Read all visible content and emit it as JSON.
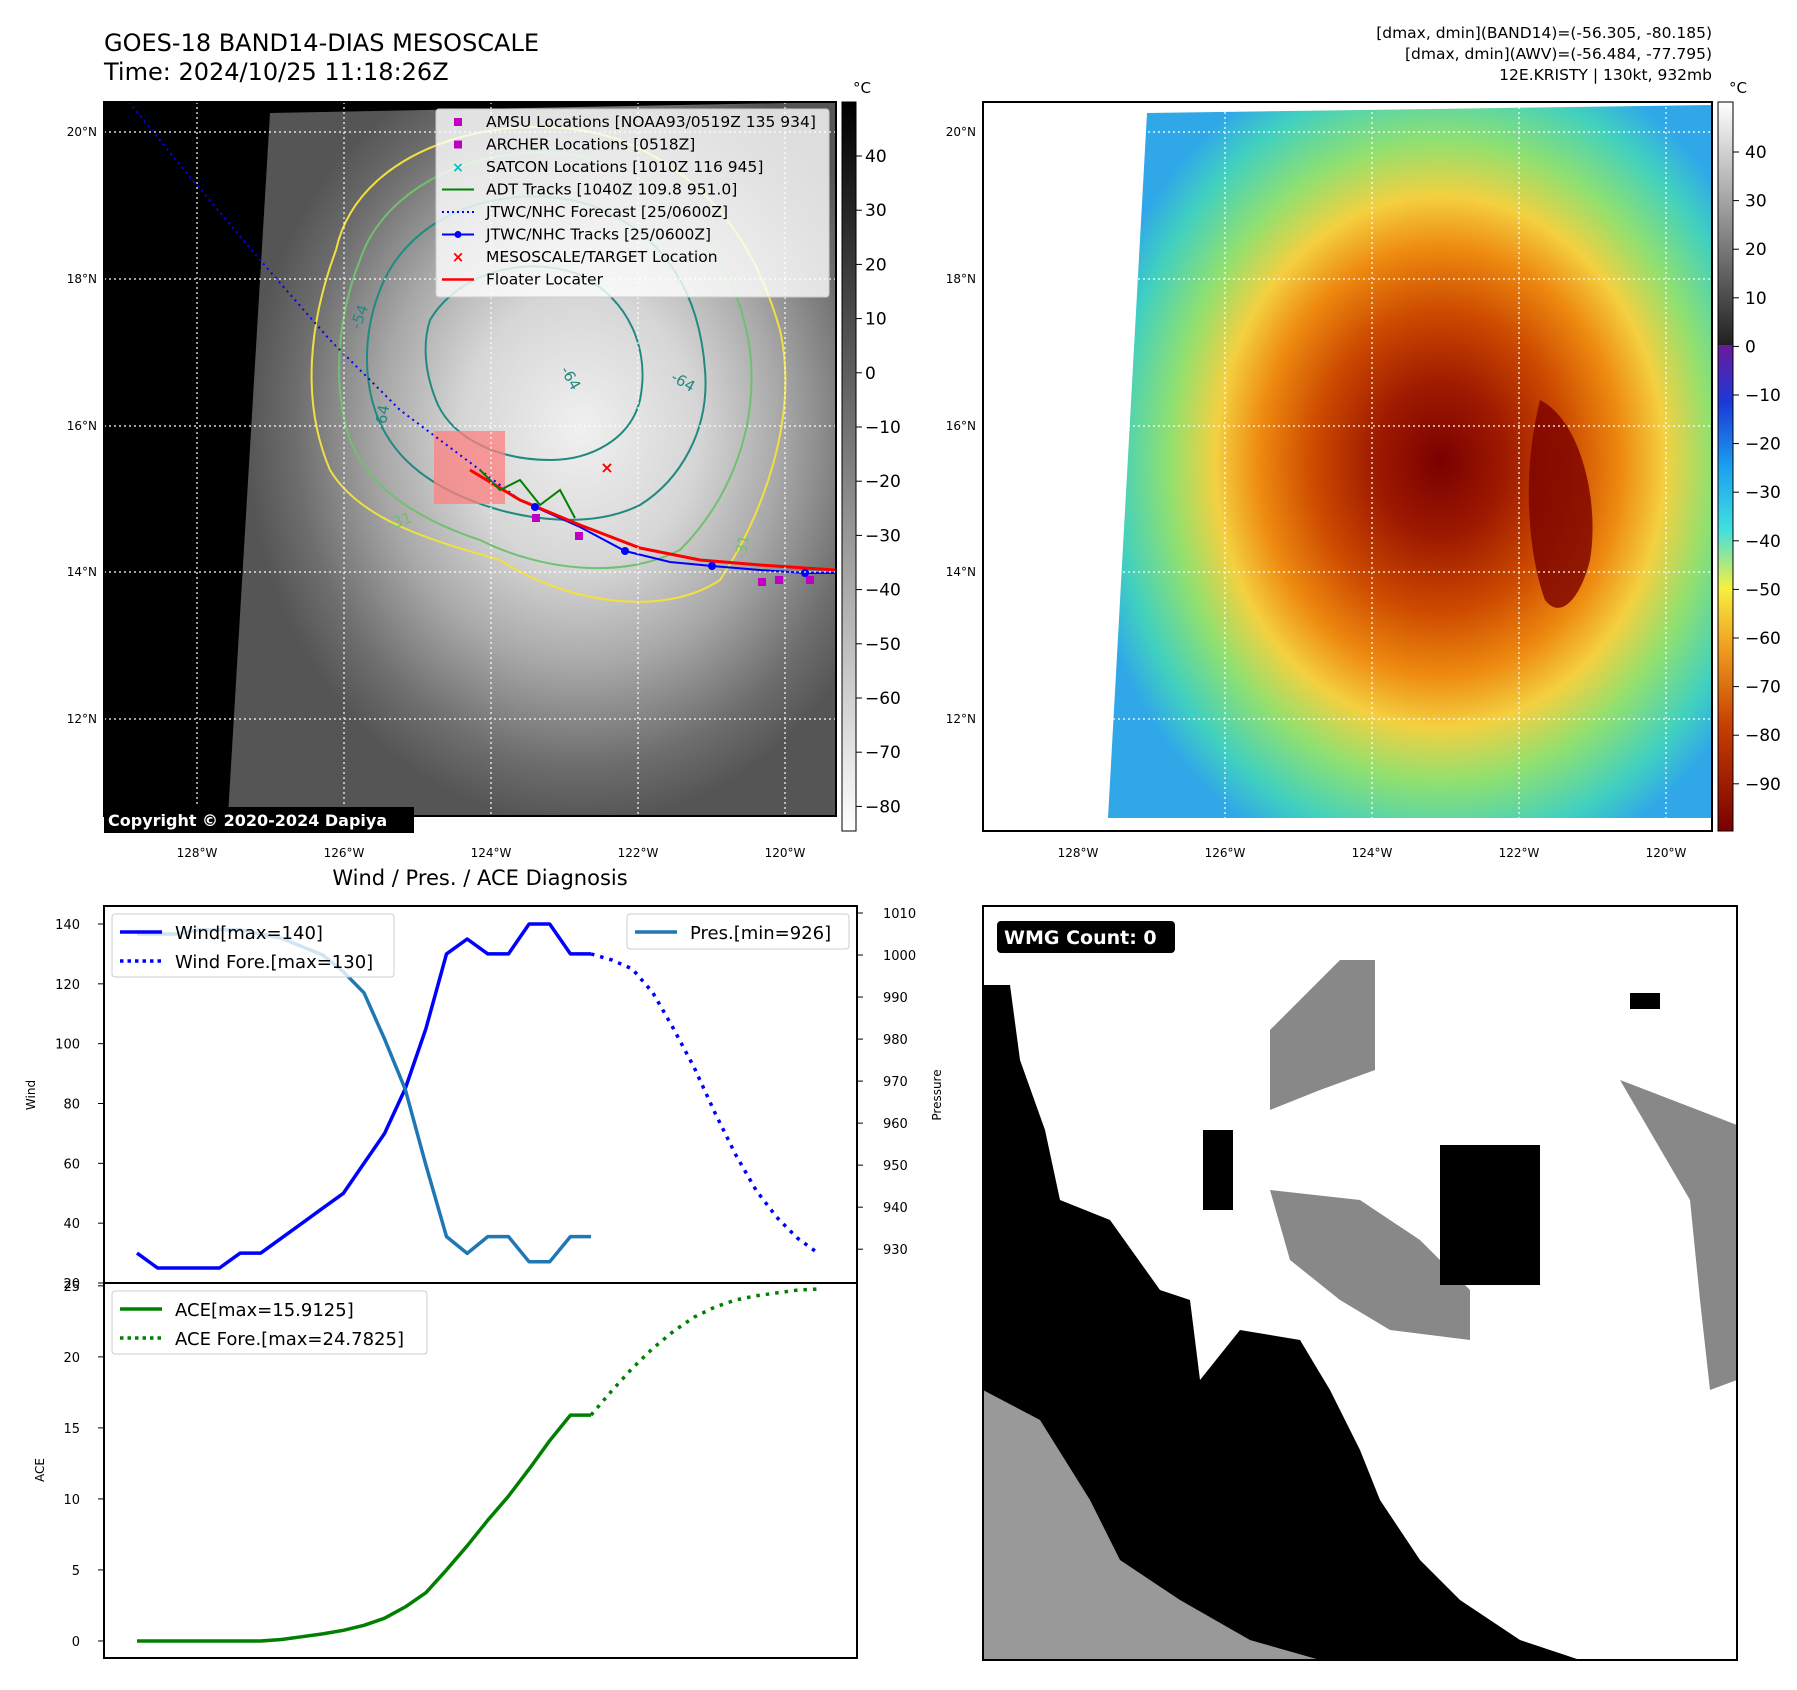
{
  "header": {
    "title_line1": "GOES-18 BAND14-DIAS MESOSCALE",
    "title_line2": "Time: 2024/10/25 11:18:26Z",
    "stats_line1": "[dmax, dmin](BAND14)=(-56.305, -80.185)",
    "stats_line2": "[dmax, dmin](AWV)=(-56.484, -77.795)",
    "stats_line3": "12E.KRISTY | 130kt, 932mb"
  },
  "maps": {
    "lon_ticks": [
      "128°W",
      "126°W",
      "124°W",
      "122°W",
      "120°W"
    ],
    "lat_ticks": [
      "20°N",
      "18°N",
      "16°N",
      "14°N",
      "12°N"
    ],
    "copyright": "Copyright © 2020-2024 Dapiya",
    "colorbar_unit": "°C",
    "gray_colorbar_ticks": [
      "40",
      "30",
      "20",
      "10",
      "0",
      "−10",
      "−20",
      "−30",
      "−40",
      "−50",
      "−60",
      "−70",
      "−80"
    ],
    "color_colorbar_ticks": [
      "40",
      "30",
      "20",
      "10",
      "0",
      "−10",
      "−20",
      "−30",
      "−40",
      "−50",
      "−60",
      "−70",
      "−80",
      "−90"
    ],
    "contour_labels": [
      "-54",
      "-64",
      "-64",
      "-64",
      "-31",
      "-31"
    ],
    "legend": [
      {
        "label": "AMSU Locations [NOAA93/0519Z 135 934]",
        "color": "#c000c0"
      },
      {
        "label": "ARCHER Locations [0518Z]",
        "color": "#c000c0"
      },
      {
        "label": "SATCON Locations [1010Z 116 945]",
        "color": "#00bfbf"
      },
      {
        "label": "ADT Tracks [1040Z 109.8 951.0]",
        "color": "#008000"
      },
      {
        "label": "JTWC/NHC Forecast [25/0600Z]",
        "color": "#0000ff"
      },
      {
        "label": "JTWC/NHC Tracks [25/0600Z]",
        "color": "#0000ff"
      },
      {
        "label": "MESOSCALE/TARGET Location",
        "color": "#ff0000"
      },
      {
        "label": "Floater Locater",
        "color": "#ff0000"
      }
    ]
  },
  "wmg": {
    "badge": "WMG Count: 0"
  },
  "chart_data": [
    {
      "type": "line",
      "title": "Wind / Pres. / ACE Diagnosis",
      "ylabel": "Wind",
      "ylabel_right": "Pressure",
      "ylim": [
        20,
        140
      ],
      "ylim_right": [
        926,
        1010
      ],
      "y_ticks": [
        20,
        40,
        60,
        80,
        100,
        120,
        140
      ],
      "y_ticks_right": [
        930,
        940,
        950,
        960,
        970,
        980,
        990,
        1000,
        1010
      ],
      "x_count": 34,
      "series": [
        {
          "name": "Wind[max=140]",
          "color": "#0000ff",
          "style": "solid",
          "axis": "left",
          "x": [
            0,
            1,
            2,
            3,
            4,
            5,
            6,
            7,
            8,
            9,
            10,
            11,
            12,
            13,
            14,
            15,
            16,
            17,
            18,
            19,
            20,
            21,
            22
          ],
          "values": [
            30,
            25,
            25,
            25,
            25,
            30,
            30,
            35,
            40,
            45,
            50,
            60,
            70,
            85,
            105,
            130,
            135,
            130,
            130,
            140,
            140,
            130,
            130
          ]
        },
        {
          "name": "Wind Fore.[max=130]",
          "color": "#0000ff",
          "style": "dotted",
          "axis": "left",
          "x": [
            22,
            23,
            24,
            25,
            26,
            27,
            28,
            29,
            30,
            31,
            32,
            33
          ],
          "values": [
            130,
            128,
            125,
            117,
            105,
            92,
            77,
            63,
            51,
            42,
            35,
            30
          ]
        },
        {
          "name": "Pres.[min=926]",
          "color": "#1f77b4",
          "style": "solid",
          "axis": "right",
          "x": [
            0,
            1,
            2,
            3,
            4,
            5,
            6,
            7,
            8,
            9,
            10,
            11,
            12,
            13,
            14,
            15,
            16,
            17,
            18,
            19,
            20,
            21,
            22
          ],
          "values": [
            1005,
            1005,
            1005,
            1006,
            1006,
            1006,
            1005,
            1004,
            1002,
            1000,
            996,
            991,
            980,
            968,
            950,
            933,
            929,
            933,
            933,
            927,
            927,
            933,
            933
          ]
        }
      ]
    },
    {
      "type": "line",
      "ylabel": "ACE",
      "ylim": [
        -1.2,
        25.2
      ],
      "y_ticks": [
        0,
        5,
        10,
        15,
        20,
        25
      ],
      "x_count": 34,
      "series": [
        {
          "name": "ACE[max=15.9125]",
          "color": "#008000",
          "style": "solid",
          "x": [
            0,
            1,
            2,
            3,
            4,
            5,
            6,
            7,
            8,
            9,
            10,
            11,
            12,
            13,
            14,
            15,
            16,
            17,
            18,
            19,
            20,
            21,
            22
          ],
          "values": [
            0,
            0,
            0,
            0,
            0,
            0,
            0,
            0.1,
            0.3,
            0.5,
            0.75,
            1.1,
            1.6,
            2.4,
            3.4,
            5.0,
            6.7,
            8.5,
            10.2,
            12.1,
            14.1,
            15.9,
            15.9
          ]
        },
        {
          "name": "ACE Fore.[max=24.7825]",
          "color": "#008000",
          "style": "dotted",
          "x": [
            22,
            23,
            24,
            25,
            26,
            27,
            28,
            29,
            30,
            31,
            32,
            33
          ],
          "values": [
            15.9,
            17.6,
            19.2,
            20.6,
            21.8,
            22.8,
            23.5,
            24.0,
            24.3,
            24.5,
            24.7,
            24.78
          ]
        }
      ]
    }
  ]
}
